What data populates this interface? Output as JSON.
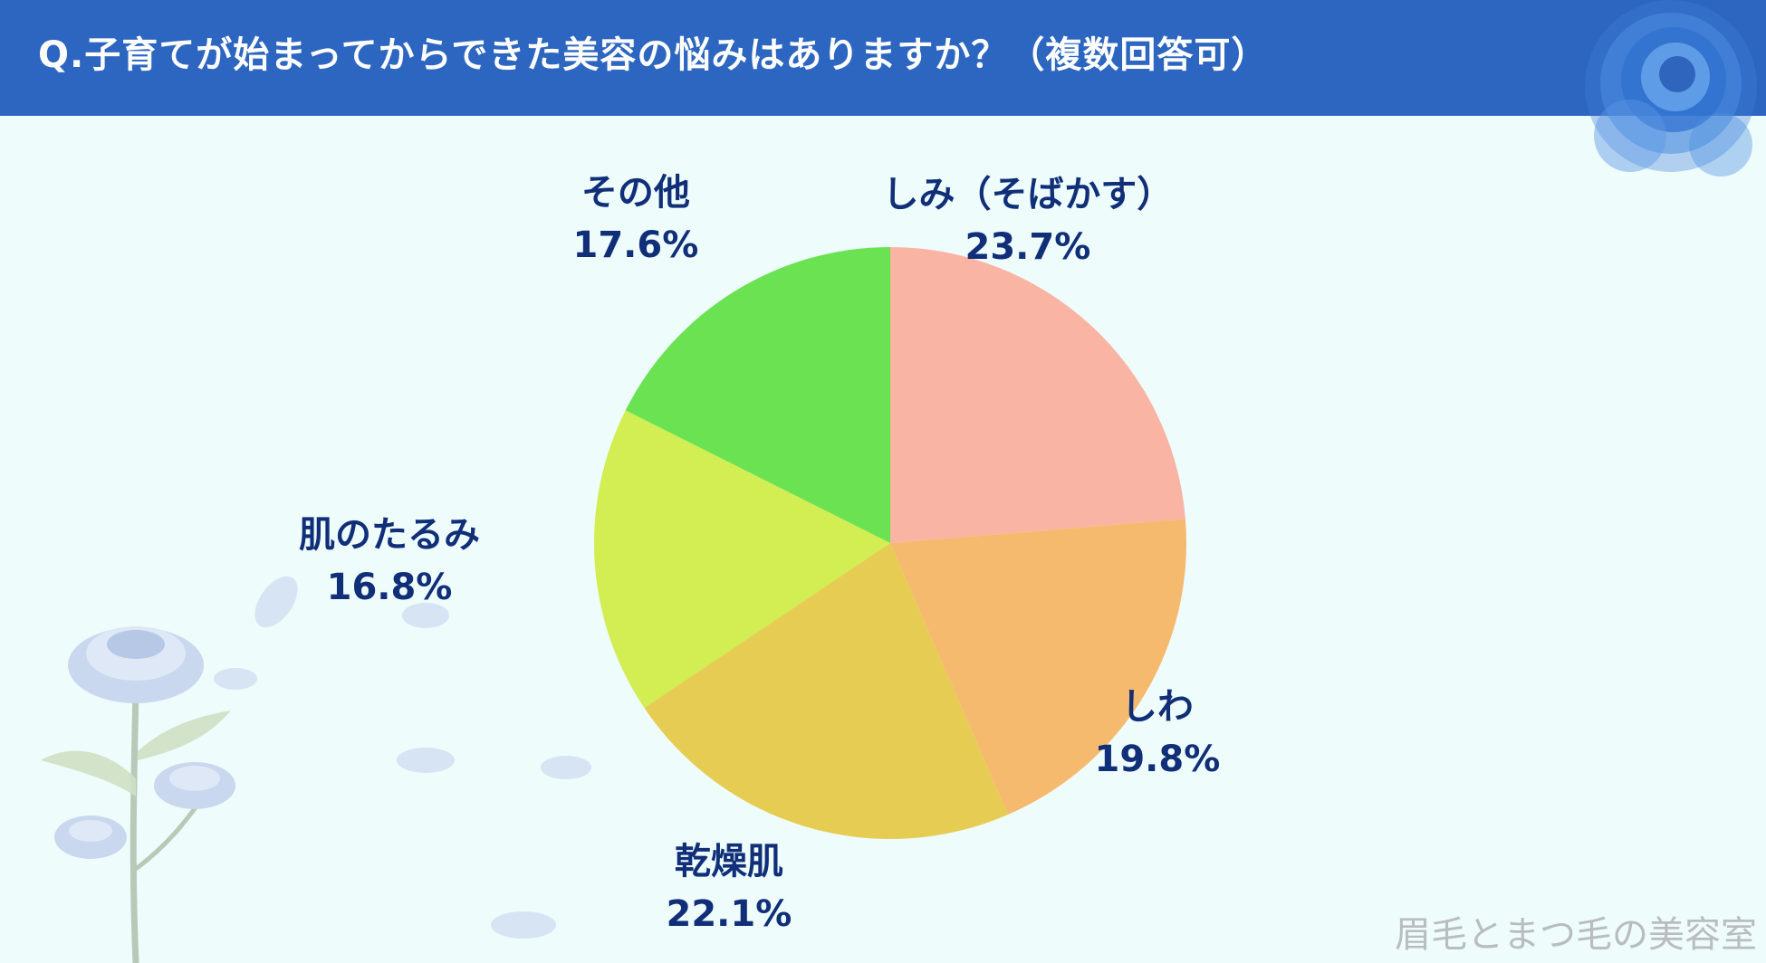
{
  "header": {
    "title": "Q.子育てが始まってからできた美容の悩みはありますか？（複数回答可）"
  },
  "chart_data": {
    "type": "pie",
    "title": "Q.子育てが始まってからできた美容の悩みはありますか？（複数回答可）",
    "slices": [
      {
        "name": "しみ（そばかす）",
        "value": 23.7,
        "label": "23.7%",
        "color": "#f9b4a3"
      },
      {
        "name": "しわ",
        "value": 19.8,
        "label": "19.8%",
        "color": "#f6ba6e"
      },
      {
        "name": "乾燥肌",
        "value": 22.1,
        "label": "22.1%",
        "color": "#e6cc52"
      },
      {
        "name": "肌のたるみ",
        "value": 16.8,
        "label": "16.8%",
        "color": "#d2ee52"
      },
      {
        "name": "その他",
        "value": 17.6,
        "label": "17.6%",
        "color": "#6ae252"
      }
    ],
    "start_angle": "12 o'clock",
    "direction": "clockwise"
  },
  "watermark": "眉毛とまつ毛の美容室",
  "colors": {
    "header": "#2d66c0",
    "background": "#eefcfc",
    "label_text": "#102f78"
  }
}
